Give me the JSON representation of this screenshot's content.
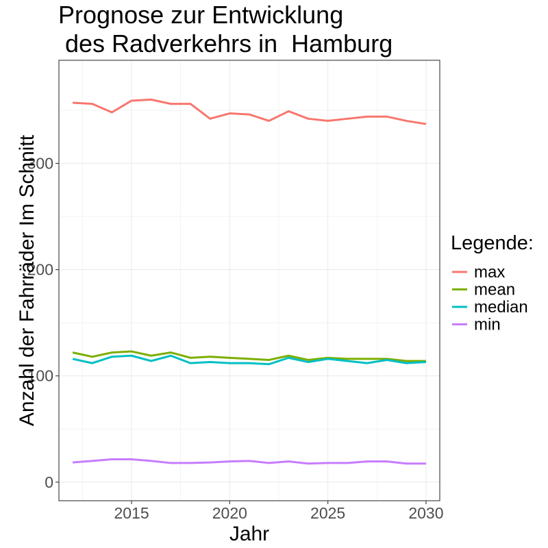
{
  "chart_data": {
    "type": "line",
    "title_lines": [
      "Prognose zur Entwicklung",
      " des Radverkehrs in  Hamburg"
    ],
    "xlabel": "Jahr",
    "ylabel": "Anzahl der Fahrräder Im Schnitt",
    "xlim": [
      2011.3,
      2030.7
    ],
    "ylim": [
      -17.5,
      397
    ],
    "x_ticks": [
      2015,
      2020,
      2025,
      2030
    ],
    "y_ticks": [
      0,
      100,
      200,
      300
    ],
    "x_minor_ticks": [
      2012.5,
      2017.5,
      2022.5,
      2027.5
    ],
    "y_minor_ticks": [
      50,
      150,
      250,
      350
    ],
    "grid": true,
    "legend": {
      "title": "Legende:",
      "position": "right"
    },
    "x": [
      2012,
      2013,
      2014,
      2015,
      2016,
      2017,
      2018,
      2019,
      2020,
      2021,
      2022,
      2023,
      2024,
      2025,
      2026,
      2027,
      2028,
      2029,
      2030
    ],
    "series": [
      {
        "name": "max",
        "color": "#F8766D",
        "values": [
          357,
          356,
          348,
          359,
          360,
          356,
          356,
          342,
          347,
          346,
          340,
          349,
          342,
          340,
          342,
          344,
          344,
          340,
          337
        ]
      },
      {
        "name": "mean",
        "color": "#7CAE00",
        "values": [
          122,
          118,
          122,
          123,
          119,
          122,
          117,
          118,
          117,
          116,
          115,
          119,
          115,
          117,
          116,
          116,
          116,
          114,
          114
        ]
      },
      {
        "name": "median",
        "color": "#00BFC4",
        "values": [
          116,
          112,
          118,
          119,
          114,
          119,
          112,
          113,
          112,
          112,
          111,
          117,
          113,
          116,
          114,
          112,
          115,
          112,
          113
        ]
      },
      {
        "name": "min",
        "color": "#C77CFF",
        "values": [
          18.5,
          20,
          21.5,
          21.5,
          20,
          18,
          18,
          18.5,
          19.5,
          20,
          18,
          19.5,
          17.5,
          18,
          18,
          19.5,
          19.5,
          17.5,
          17.5
        ]
      }
    ]
  }
}
